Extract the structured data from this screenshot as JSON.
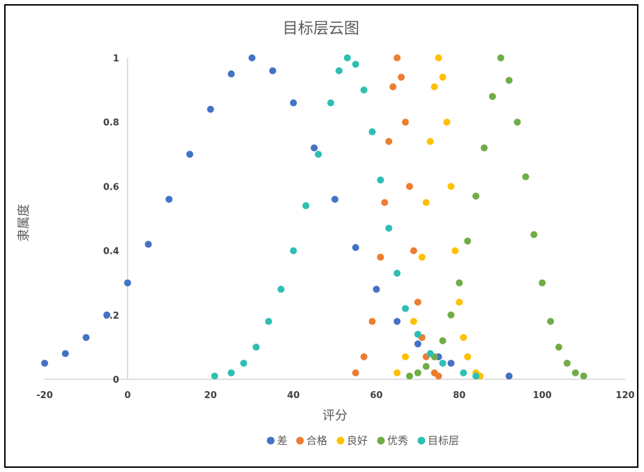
{
  "chart_data": {
    "type": "scatter",
    "title": "目标层云图",
    "xlabel": "评分",
    "ylabel": "隶属度",
    "xlim": [
      -20,
      120
    ],
    "ylim": [
      0,
      1
    ],
    "xticks": [
      "-20",
      "0",
      "20",
      "40",
      "60",
      "80",
      "100",
      "120"
    ],
    "yticks": [
      "0",
      "0.2",
      "0.4",
      "0.6",
      "0.8",
      "1"
    ],
    "grid": false,
    "legend_position": "bottom",
    "series": [
      {
        "name": "差",
        "color": "#4472C4",
        "x": [
          -20,
          -15,
          -10,
          -5,
          0,
          5,
          10,
          15,
          20,
          25,
          30,
          35,
          40,
          45,
          50,
          55,
          60,
          65,
          70,
          75,
          78,
          92
        ],
        "y": [
          0.05,
          0.08,
          0.13,
          0.2,
          0.3,
          0.42,
          0.56,
          0.7,
          0.84,
          0.95,
          1.0,
          0.96,
          0.86,
          0.72,
          0.56,
          0.41,
          0.28,
          0.18,
          0.11,
          0.07,
          0.05,
          0.01
        ]
      },
      {
        "name": "合格",
        "color": "#ED7D31",
        "x": [
          55,
          57,
          59,
          61,
          62,
          63,
          64,
          65,
          66,
          67,
          68,
          69,
          70,
          71,
          72,
          74,
          75
        ],
        "y": [
          0.02,
          0.07,
          0.18,
          0.38,
          0.55,
          0.74,
          0.91,
          1.0,
          0.94,
          0.8,
          0.6,
          0.4,
          0.24,
          0.13,
          0.07,
          0.02,
          0.01
        ]
      },
      {
        "name": "良好",
        "color": "#FFC000",
        "x": [
          65,
          67,
          69,
          71,
          72,
          73,
          74,
          75,
          76,
          77,
          78,
          79,
          80,
          81,
          82,
          84,
          85
        ],
        "y": [
          0.02,
          0.07,
          0.18,
          0.38,
          0.55,
          0.74,
          0.91,
          1.0,
          0.94,
          0.8,
          0.6,
          0.4,
          0.24,
          0.13,
          0.07,
          0.02,
          0.01
        ]
      },
      {
        "name": "优秀",
        "color": "#70AD47",
        "x": [
          68,
          70,
          72,
          74,
          76,
          78,
          80,
          82,
          84,
          86,
          88,
          90,
          92,
          94,
          96,
          98,
          100,
          102,
          104,
          106,
          108,
          110
        ],
        "y": [
          0.01,
          0.02,
          0.04,
          0.07,
          0.12,
          0.2,
          0.3,
          0.43,
          0.57,
          0.72,
          0.88,
          1.0,
          0.93,
          0.8,
          0.63,
          0.45,
          0.3,
          0.18,
          0.1,
          0.05,
          0.02,
          0.01
        ]
      },
      {
        "name": "目标层",
        "color": "#2EBFB3",
        "x": [
          21,
          25,
          28,
          31,
          34,
          37,
          40,
          43,
          46,
          49,
          51,
          53,
          55,
          57,
          59,
          61,
          63,
          65,
          67,
          70,
          73,
          76,
          81,
          84
        ],
        "y": [
          0.01,
          0.02,
          0.05,
          0.1,
          0.18,
          0.28,
          0.4,
          0.54,
          0.7,
          0.86,
          0.96,
          1.0,
          0.98,
          0.9,
          0.77,
          0.62,
          0.47,
          0.33,
          0.22,
          0.14,
          0.08,
          0.05,
          0.02,
          0.01
        ]
      }
    ]
  }
}
